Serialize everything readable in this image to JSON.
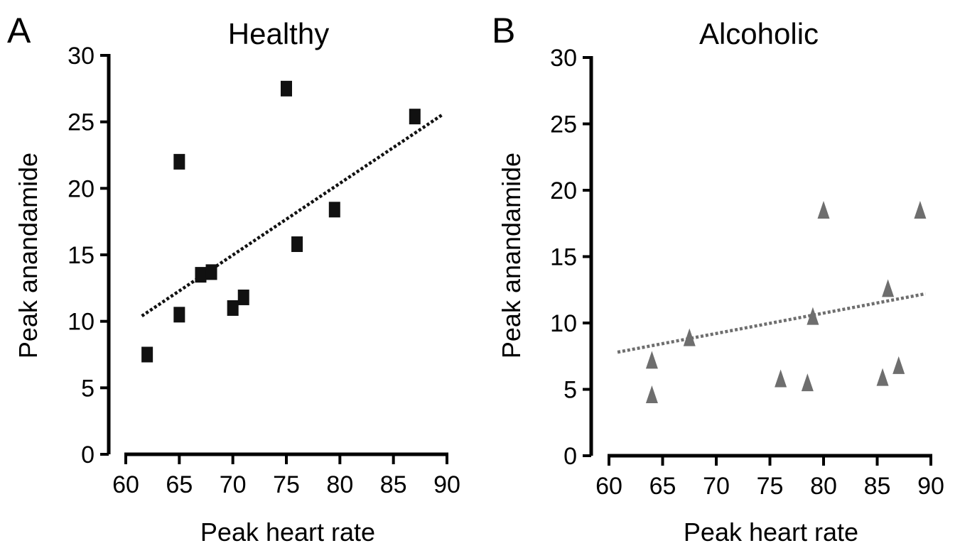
{
  "chart_data": [
    {
      "type": "scatter",
      "panel_label": "A",
      "title": "Healthy",
      "xlabel": "Peak heart rate",
      "ylabel": "Peak anandamide",
      "xlim": [
        60,
        90
      ],
      "ylim": [
        0,
        30
      ],
      "xticks": [
        60,
        65,
        70,
        75,
        80,
        85,
        90
      ],
      "yticks": [
        0,
        5,
        10,
        15,
        20,
        25,
        30
      ],
      "marker": "square",
      "marker_color": "#111111",
      "trendline_color": "#111111",
      "grid": false,
      "series": [
        {
          "points": [
            {
              "x": 62,
              "y": 7.5
            },
            {
              "x": 65,
              "y": 22
            },
            {
              "x": 65,
              "y": 10.5
            },
            {
              "x": 67,
              "y": 13.5
            },
            {
              "x": 68,
              "y": 13.7
            },
            {
              "x": 70,
              "y": 11
            },
            {
              "x": 71,
              "y": 11.8
            },
            {
              "x": 75,
              "y": 27.5
            },
            {
              "x": 76,
              "y": 15.8
            },
            {
              "x": 79.5,
              "y": 18.4
            },
            {
              "x": 87,
              "y": 25.4
            }
          ]
        }
      ],
      "trendline": {
        "x": [
          61.5,
          89.5
        ],
        "y": [
          10.4,
          25.5
        ]
      }
    },
    {
      "type": "scatter",
      "panel_label": "B",
      "title": "Alcoholic",
      "xlabel": "Peak heart rate",
      "ylabel": "Peak anandamide",
      "xlim": [
        60,
        90
      ],
      "ylim": [
        0,
        30
      ],
      "xticks": [
        60,
        65,
        70,
        75,
        80,
        85,
        90
      ],
      "yticks": [
        0,
        5,
        10,
        15,
        20,
        25,
        30
      ],
      "marker": "triangle",
      "marker_color": "#6e6e6e",
      "trendline_color": "#6e6e6e",
      "grid": false,
      "series": [
        {
          "points": [
            {
              "x": 64,
              "y": 7.2
            },
            {
              "x": 64,
              "y": 4.6
            },
            {
              "x": 67.5,
              "y": 8.9
            },
            {
              "x": 76,
              "y": 5.8
            },
            {
              "x": 78.5,
              "y": 5.5
            },
            {
              "x": 79,
              "y": 10.5
            },
            {
              "x": 80,
              "y": 18.5
            },
            {
              "x": 85.5,
              "y": 5.9
            },
            {
              "x": 86,
              "y": 12.6
            },
            {
              "x": 87,
              "y": 6.8
            },
            {
              "x": 89,
              "y": 18.5
            }
          ]
        }
      ],
      "trendline": {
        "x": [
          60.8,
          89.5
        ],
        "y": [
          7.8,
          12.2
        ]
      }
    }
  ]
}
